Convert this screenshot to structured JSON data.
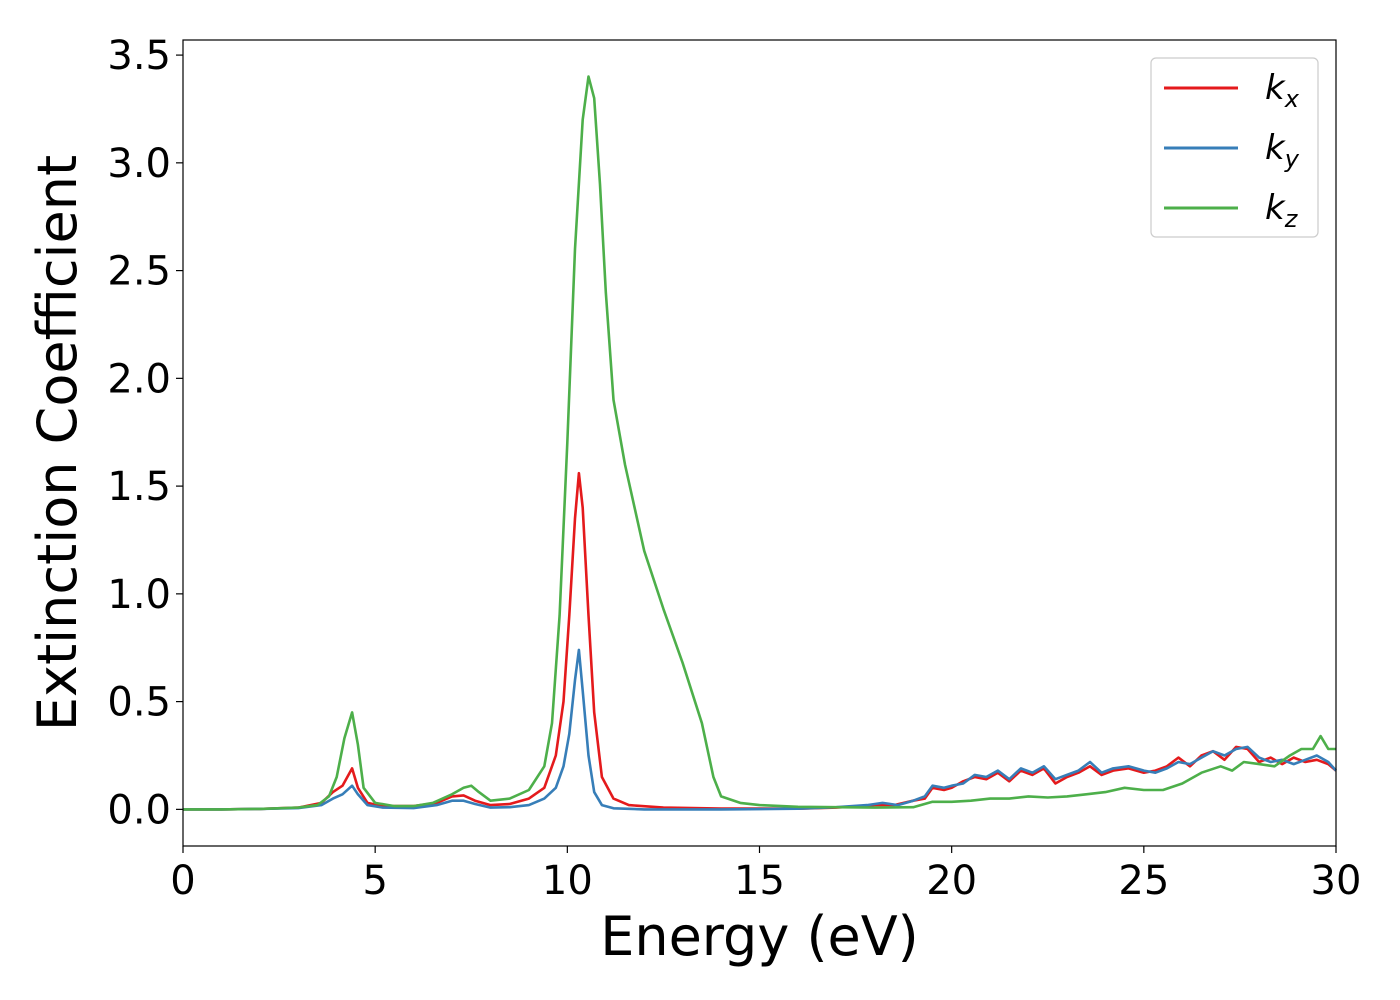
{
  "chart_data": {
    "type": "line",
    "xlabel": "Energy (eV)",
    "ylabel": "Extinction Coefficient",
    "xlim": [
      0,
      30
    ],
    "ylim": [
      -0.17,
      3.57
    ],
    "xticks": [
      0,
      5,
      10,
      15,
      20,
      25,
      30
    ],
    "yticks": [
      0.0,
      0.5,
      1.0,
      1.5,
      2.0,
      2.5,
      3.0,
      3.5
    ],
    "xtick_labels": [
      "0",
      "5",
      "10",
      "15",
      "20",
      "25",
      "30"
    ],
    "ytick_labels": [
      "0.0",
      "0.5",
      "1.0",
      "1.5",
      "2.0",
      "2.5",
      "3.0",
      "3.5"
    ],
    "grid": false,
    "legend_position": "top-right",
    "series": [
      {
        "name": "k_x",
        "label_main": "k",
        "label_sub": "x",
        "color": "#e41a1c",
        "points": [
          [
            0,
            0.0
          ],
          [
            1,
            0.0
          ],
          [
            2,
            0.002
          ],
          [
            3,
            0.008
          ],
          [
            3.6,
            0.03
          ],
          [
            3.9,
            0.08
          ],
          [
            4.15,
            0.11
          ],
          [
            4.4,
            0.19
          ],
          [
            4.55,
            0.1
          ],
          [
            4.8,
            0.03
          ],
          [
            5.2,
            0.015
          ],
          [
            6,
            0.015
          ],
          [
            6.6,
            0.03
          ],
          [
            7.0,
            0.06
          ],
          [
            7.3,
            0.065
          ],
          [
            7.6,
            0.04
          ],
          [
            8.0,
            0.02
          ],
          [
            8.5,
            0.025
          ],
          [
            9.0,
            0.05
          ],
          [
            9.4,
            0.1
          ],
          [
            9.7,
            0.25
          ],
          [
            9.9,
            0.5
          ],
          [
            10.05,
            0.9
          ],
          [
            10.2,
            1.35
          ],
          [
            10.3,
            1.56
          ],
          [
            10.4,
            1.4
          ],
          [
            10.55,
            0.9
          ],
          [
            10.7,
            0.45
          ],
          [
            10.9,
            0.15
          ],
          [
            11.2,
            0.05
          ],
          [
            11.6,
            0.02
          ],
          [
            12.5,
            0.008
          ],
          [
            14,
            0.004
          ],
          [
            16,
            0.003
          ],
          [
            17,
            0.008
          ],
          [
            18,
            0.02
          ],
          [
            18.5,
            0.02
          ],
          [
            19.0,
            0.04
          ],
          [
            19.3,
            0.05
          ],
          [
            19.5,
            0.1
          ],
          [
            19.8,
            0.09
          ],
          [
            20.0,
            0.1
          ],
          [
            20.3,
            0.13
          ],
          [
            20.6,
            0.15
          ],
          [
            20.9,
            0.14
          ],
          [
            21.2,
            0.17
          ],
          [
            21.5,
            0.13
          ],
          [
            21.8,
            0.18
          ],
          [
            22.1,
            0.16
          ],
          [
            22.4,
            0.19
          ],
          [
            22.7,
            0.12
          ],
          [
            23.0,
            0.15
          ],
          [
            23.3,
            0.17
          ],
          [
            23.6,
            0.2
          ],
          [
            23.9,
            0.16
          ],
          [
            24.2,
            0.18
          ],
          [
            24.6,
            0.19
          ],
          [
            25.0,
            0.17
          ],
          [
            25.3,
            0.18
          ],
          [
            25.6,
            0.2
          ],
          [
            25.9,
            0.24
          ],
          [
            26.2,
            0.2
          ],
          [
            26.5,
            0.25
          ],
          [
            26.8,
            0.27
          ],
          [
            27.1,
            0.23
          ],
          [
            27.4,
            0.29
          ],
          [
            27.7,
            0.28
          ],
          [
            28.0,
            0.22
          ],
          [
            28.3,
            0.24
          ],
          [
            28.6,
            0.21
          ],
          [
            28.9,
            0.24
          ],
          [
            29.2,
            0.22
          ],
          [
            29.5,
            0.23
          ],
          [
            29.8,
            0.21
          ],
          [
            30,
            0.18
          ]
        ]
      },
      {
        "name": "k_y",
        "label_main": "k",
        "label_sub": "y",
        "color": "#377eb8",
        "points": [
          [
            0,
            0.0
          ],
          [
            1,
            0.0
          ],
          [
            2,
            0.002
          ],
          [
            3,
            0.006
          ],
          [
            3.6,
            0.02
          ],
          [
            3.9,
            0.05
          ],
          [
            4.15,
            0.07
          ],
          [
            4.4,
            0.11
          ],
          [
            4.55,
            0.07
          ],
          [
            4.8,
            0.02
          ],
          [
            5.2,
            0.008
          ],
          [
            6,
            0.006
          ],
          [
            6.6,
            0.02
          ],
          [
            7.0,
            0.04
          ],
          [
            7.3,
            0.04
          ],
          [
            7.6,
            0.025
          ],
          [
            8.0,
            0.008
          ],
          [
            8.5,
            0.01
          ],
          [
            9.0,
            0.02
          ],
          [
            9.4,
            0.05
          ],
          [
            9.7,
            0.1
          ],
          [
            9.9,
            0.2
          ],
          [
            10.05,
            0.35
          ],
          [
            10.2,
            0.6
          ],
          [
            10.3,
            0.74
          ],
          [
            10.4,
            0.55
          ],
          [
            10.55,
            0.25
          ],
          [
            10.7,
            0.08
          ],
          [
            10.9,
            0.02
          ],
          [
            11.2,
            0.005
          ],
          [
            12,
            0.0
          ],
          [
            14,
            0.0
          ],
          [
            16,
            0.003
          ],
          [
            17,
            0.01
          ],
          [
            17.8,
            0.02
          ],
          [
            18.2,
            0.03
          ],
          [
            18.6,
            0.02
          ],
          [
            19.0,
            0.04
          ],
          [
            19.3,
            0.06
          ],
          [
            19.5,
            0.11
          ],
          [
            19.8,
            0.1
          ],
          [
            20.0,
            0.11
          ],
          [
            20.3,
            0.12
          ],
          [
            20.6,
            0.16
          ],
          [
            20.9,
            0.15
          ],
          [
            21.2,
            0.18
          ],
          [
            21.5,
            0.14
          ],
          [
            21.8,
            0.19
          ],
          [
            22.1,
            0.17
          ],
          [
            22.4,
            0.2
          ],
          [
            22.7,
            0.14
          ],
          [
            23.0,
            0.16
          ],
          [
            23.3,
            0.18
          ],
          [
            23.6,
            0.22
          ],
          [
            23.9,
            0.17
          ],
          [
            24.2,
            0.19
          ],
          [
            24.6,
            0.2
          ],
          [
            25.0,
            0.18
          ],
          [
            25.3,
            0.17
          ],
          [
            25.6,
            0.19
          ],
          [
            25.9,
            0.22
          ],
          [
            26.2,
            0.21
          ],
          [
            26.5,
            0.24
          ],
          [
            26.8,
            0.27
          ],
          [
            27.1,
            0.25
          ],
          [
            27.4,
            0.28
          ],
          [
            27.7,
            0.29
          ],
          [
            28.0,
            0.24
          ],
          [
            28.3,
            0.22
          ],
          [
            28.6,
            0.23
          ],
          [
            28.9,
            0.21
          ],
          [
            29.2,
            0.23
          ],
          [
            29.5,
            0.25
          ],
          [
            29.8,
            0.22
          ],
          [
            30,
            0.18
          ]
        ]
      },
      {
        "name": "k_z",
        "label_main": "k",
        "label_sub": "z",
        "color": "#4daf4a",
        "points": [
          [
            0,
            0.0
          ],
          [
            1,
            0.0
          ],
          [
            2,
            0.002
          ],
          [
            3,
            0.008
          ],
          [
            3.5,
            0.02
          ],
          [
            3.8,
            0.06
          ],
          [
            4.0,
            0.15
          ],
          [
            4.2,
            0.33
          ],
          [
            4.4,
            0.45
          ],
          [
            4.55,
            0.3
          ],
          [
            4.7,
            0.1
          ],
          [
            5.0,
            0.03
          ],
          [
            5.5,
            0.015
          ],
          [
            6,
            0.015
          ],
          [
            6.5,
            0.03
          ],
          [
            7.0,
            0.07
          ],
          [
            7.3,
            0.1
          ],
          [
            7.5,
            0.11
          ],
          [
            7.7,
            0.08
          ],
          [
            8.0,
            0.04
          ],
          [
            8.5,
            0.05
          ],
          [
            9.0,
            0.09
          ],
          [
            9.4,
            0.2
          ],
          [
            9.6,
            0.4
          ],
          [
            9.8,
            0.9
          ],
          [
            10.0,
            1.7
          ],
          [
            10.2,
            2.6
          ],
          [
            10.4,
            3.2
          ],
          [
            10.55,
            3.4
          ],
          [
            10.7,
            3.3
          ],
          [
            10.85,
            2.9
          ],
          [
            11.0,
            2.4
          ],
          [
            11.2,
            1.9
          ],
          [
            11.5,
            1.6
          ],
          [
            12.0,
            1.2
          ],
          [
            12.5,
            0.93
          ],
          [
            13.0,
            0.68
          ],
          [
            13.5,
            0.4
          ],
          [
            13.8,
            0.15
          ],
          [
            14.0,
            0.06
          ],
          [
            14.5,
            0.03
          ],
          [
            15,
            0.02
          ],
          [
            16,
            0.012
          ],
          [
            17,
            0.01
          ],
          [
            18,
            0.008
          ],
          [
            19.0,
            0.01
          ],
          [
            19.5,
            0.035
          ],
          [
            20.0,
            0.035
          ],
          [
            20.5,
            0.04
          ],
          [
            21.0,
            0.05
          ],
          [
            21.5,
            0.05
          ],
          [
            22.0,
            0.06
          ],
          [
            22.5,
            0.055
          ],
          [
            23.0,
            0.06
          ],
          [
            23.5,
            0.07
          ],
          [
            24.0,
            0.08
          ],
          [
            24.5,
            0.1
          ],
          [
            25.0,
            0.09
          ],
          [
            25.5,
            0.09
          ],
          [
            26.0,
            0.12
          ],
          [
            26.5,
            0.17
          ],
          [
            27.0,
            0.2
          ],
          [
            27.3,
            0.18
          ],
          [
            27.6,
            0.22
          ],
          [
            28.0,
            0.21
          ],
          [
            28.4,
            0.2
          ],
          [
            28.8,
            0.25
          ],
          [
            29.1,
            0.28
          ],
          [
            29.4,
            0.28
          ],
          [
            29.6,
            0.34
          ],
          [
            29.8,
            0.28
          ],
          [
            30,
            0.28
          ]
        ]
      }
    ]
  }
}
